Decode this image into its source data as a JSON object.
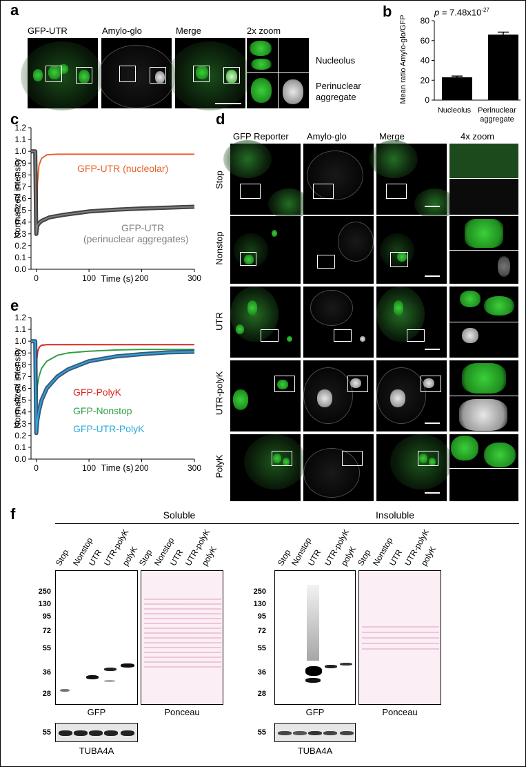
{
  "figure": {
    "panel_labels": {
      "a": "a",
      "b": "b",
      "c": "c",
      "d": "d",
      "e": "e",
      "f": "f"
    }
  },
  "panel_a": {
    "col_labels": [
      "GFP-UTR",
      "Amylo-glo",
      "Merge",
      "2x zoom"
    ],
    "zoom_labels": [
      "Nucleolus",
      "Perinuclear aggregate"
    ],
    "zoom_label_lines": [
      "Nucleolus",
      "Perinuclear",
      "aggregate"
    ]
  },
  "panel_b": {
    "ylabel": "Mean ratio Amylo-glo/GFP",
    "p_value_prefix": "p",
    "p_value_text": " = 7.48x10",
    "p_value_exp": "-27",
    "cat_lines": [
      [
        "Nucleolus"
      ],
      [
        "Perinuclear",
        "aggregate"
      ]
    ]
  },
  "panel_c": {
    "ylabel": "Normalized intensity",
    "xlabel": "Time (s)",
    "legend": [
      {
        "lines": [
          "GFP-UTR (nucleolar)"
        ],
        "color": "#e8622b"
      },
      {
        "lines": [
          "GFP-UTR",
          "(perinuclear aggregates)"
        ],
        "color": "#7f7f7f"
      }
    ]
  },
  "panel_d": {
    "col_labels": [
      "GFP Reporter",
      "Amylo-glo",
      "Merge",
      "4x zoom"
    ],
    "row_labels": [
      "Stop",
      "Nonstop",
      "UTR",
      "UTR-polyK",
      "PolyK"
    ]
  },
  "panel_e": {
    "ylabel": "Normalized intensity",
    "xlabel": "Time (s)",
    "legend": [
      {
        "label": "GFP-PolyK",
        "color": "#d9261c"
      },
      {
        "label": "GFP-Nonstop",
        "color": "#2f9e44"
      },
      {
        "label": "GFP-UTR-PolyK",
        "color": "#2aa8d8"
      }
    ]
  },
  "panel_f": {
    "groups": [
      "Soluble",
      "Insoluble"
    ],
    "lanes": [
      "Stop",
      "Nonstop",
      "UTR",
      "UTR-polyK",
      "polyK"
    ],
    "mw_markers": [
      "250",
      "130",
      "95",
      "72",
      "55",
      "36",
      "28"
    ],
    "loading_marker": "55",
    "blot_labels": [
      "GFP",
      "Ponceau"
    ],
    "loading_label": "TUBA4A"
  },
  "chart_data": [
    {
      "type": "bar",
      "categories": [
        "Nucleolus",
        "Perinuclear aggregate"
      ],
      "values": [
        23,
        66
      ],
      "errors": [
        1.2,
        2.5
      ],
      "ylabel": "Mean ratio Amylo-glo/GFP",
      "ylim": [
        0,
        80
      ],
      "yticks": [
        0,
        20,
        40,
        60,
        80
      ],
      "bar_color": "#000000"
    },
    {
      "type": "line",
      "ylabel": "Normalized intensity",
      "xlabel": "Time (s)",
      "xlim": [
        -10,
        300
      ],
      "ylim": [
        0,
        1.2
      ],
      "xticks": [
        0,
        100,
        200,
        300
      ],
      "yticks": [
        0.0,
        0.1,
        0.2,
        0.3,
        0.4,
        0.5,
        0.6,
        0.7,
        0.8,
        0.9,
        1.0,
        1.1,
        1.2
      ],
      "series": [
        {
          "name": "GFP-UTR (nucleolar)",
          "color": "#e8622b",
          "x": [
            -10,
            -2,
            0,
            2,
            5,
            10,
            20,
            40,
            80,
            150,
            300
          ],
          "y": [
            1.0,
            1.0,
            0.33,
            0.72,
            0.88,
            0.94,
            0.97,
            0.975,
            0.975,
            0.975,
            0.975
          ]
        },
        {
          "name": "GFP-UTR (perinuclear aggregates)",
          "color": "#7f7f7f",
          "x": [
            -10,
            -2,
            0,
            2,
            5,
            10,
            25,
            50,
            100,
            150,
            200,
            300
          ],
          "y": [
            1.0,
            1.0,
            0.3,
            0.37,
            0.39,
            0.41,
            0.44,
            0.46,
            0.49,
            0.505,
            0.515,
            0.53
          ]
        }
      ]
    },
    {
      "type": "line",
      "ylabel": "Normalized intensity",
      "xlabel": "Time (s)",
      "xlim": [
        -10,
        300
      ],
      "ylim": [
        0,
        1.2
      ],
      "xticks": [
        0,
        100,
        200,
        300
      ],
      "yticks": [
        0.0,
        0.1,
        0.2,
        0.3,
        0.4,
        0.5,
        0.6,
        0.7,
        0.8,
        0.9,
        1.0,
        1.1,
        1.2
      ],
      "series": [
        {
          "name": "GFP-PolyK",
          "color": "#d9261c",
          "x": [
            -10,
            -2,
            0,
            1,
            3,
            6,
            10,
            20,
            50,
            100,
            200,
            300
          ],
          "y": [
            1.0,
            1.0,
            0.6,
            0.85,
            0.92,
            0.95,
            0.965,
            0.97,
            0.97,
            0.97,
            0.97,
            0.97
          ]
        },
        {
          "name": "GFP-Nonstop",
          "color": "#2f9e44",
          "x": [
            -10,
            -2,
            0,
            2,
            5,
            10,
            20,
            40,
            60,
            100,
            150,
            200,
            300
          ],
          "y": [
            1.0,
            1.0,
            0.5,
            0.62,
            0.7,
            0.77,
            0.83,
            0.88,
            0.9,
            0.915,
            0.925,
            0.93,
            0.93
          ]
        },
        {
          "name": "GFP-UTR-PolyK",
          "color": "#2aa8d8",
          "x": [
            -10,
            -2,
            0,
            2,
            5,
            10,
            20,
            40,
            60,
            100,
            150,
            200,
            250,
            300
          ],
          "y": [
            1.0,
            1.0,
            0.22,
            0.33,
            0.41,
            0.5,
            0.6,
            0.7,
            0.76,
            0.83,
            0.87,
            0.89,
            0.905,
            0.91
          ]
        }
      ]
    }
  ]
}
